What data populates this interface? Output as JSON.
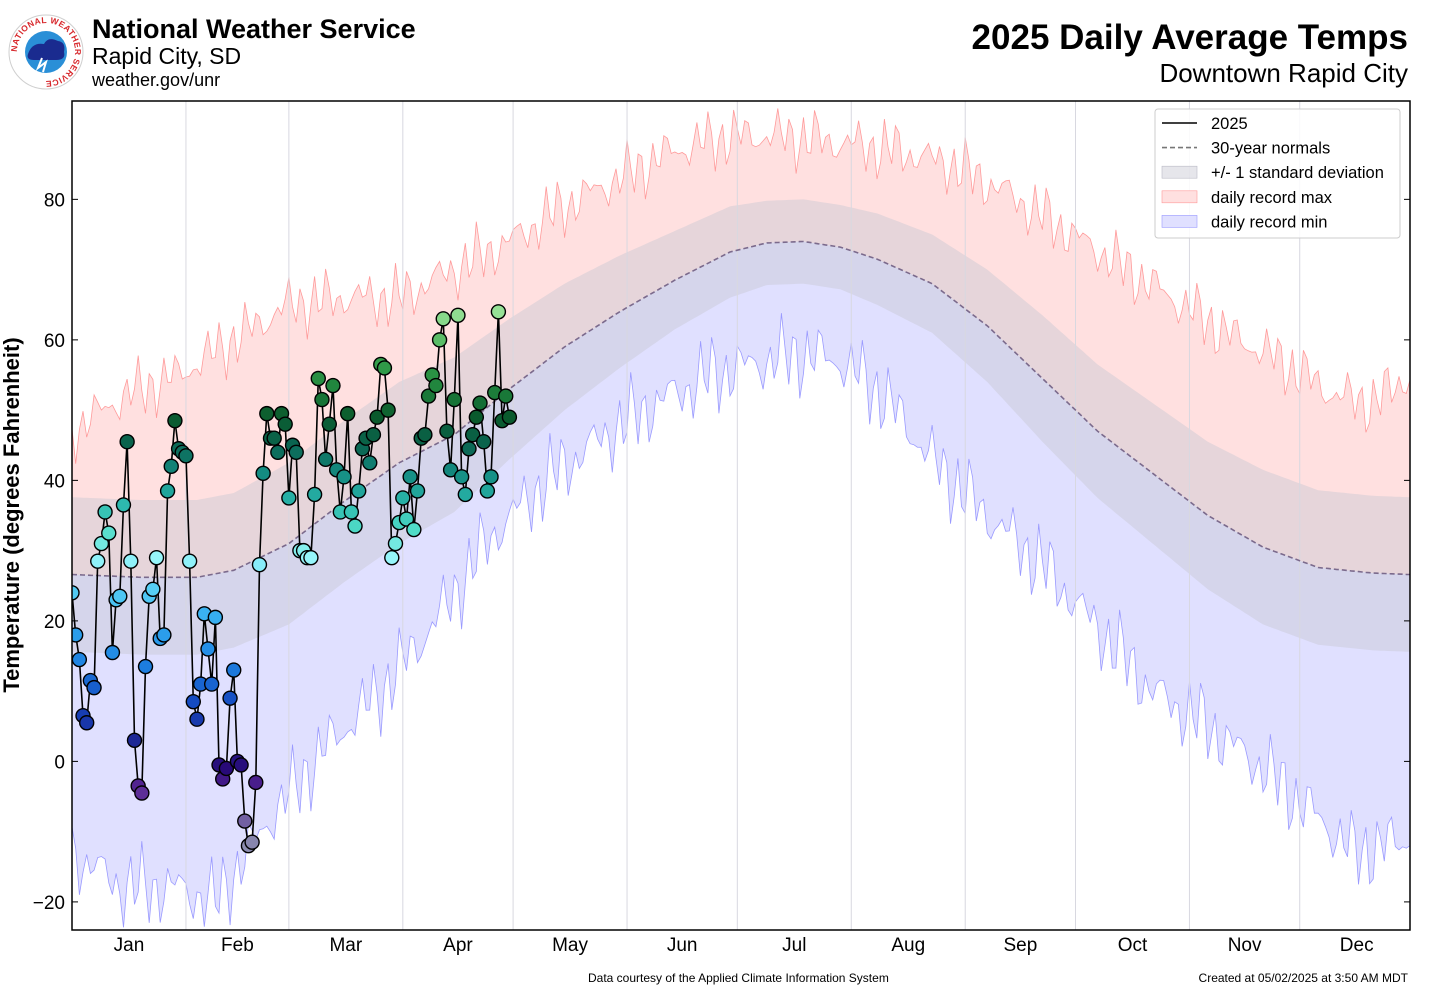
{
  "header": {
    "org_name": "National Weather Service",
    "office": "Rapid City, SD",
    "site": "weather.gov/unr",
    "logo_text": "NATIONAL WEATHER SERVICE"
  },
  "footer": {
    "credit": "Data courtesy of the Applied Climate Information System",
    "created": "Created at 05/02/2025 at 3:50 AM MDT"
  },
  "chart_data": {
    "type": "line",
    "title": "2025 Daily Average Temps",
    "subtitle": "Downtown Rapid City",
    "xlabel": "",
    "ylabel": "Temperature (degrees Fahrenheit)",
    "ylim": [
      -24,
      94
    ],
    "y_ticks": [
      -20,
      0,
      20,
      40,
      60,
      80
    ],
    "xlim_day_of_year": [
      1,
      365
    ],
    "month_labels": [
      "Jan",
      "Feb",
      "Mar",
      "Apr",
      "May",
      "Jun",
      "Jul",
      "Aug",
      "Sep",
      "Oct",
      "Nov",
      "Dec"
    ],
    "grid": "vertical month lines",
    "legend_position": "top-right",
    "legend": [
      "2025",
      "30-year normals",
      "+/- 1 standard deviation",
      "daily record max",
      "daily record min"
    ],
    "colors": {
      "observed_line": "#000000",
      "normal_line": "#7b6a8c",
      "std_band": "#c8c8d2",
      "record_max_fill": "#ffe0e0",
      "record_max_line": "#ff9a9a",
      "record_min_fill": "#e0e0ff",
      "record_min_line": "#9a9aff"
    },
    "observed_2025": [
      24,
      18,
      14.5,
      6.5,
      5.5,
      11.5,
      10.5,
      28.5,
      31,
      35.5,
      32.5,
      15.5,
      23,
      23.5,
      36.5,
      45.5,
      28.5,
      3,
      -3.5,
      -4.5,
      13.5,
      23.5,
      24.5,
      29,
      17.5,
      18,
      38.5,
      42,
      48.5,
      44.5,
      44,
      43.5,
      28.5,
      8.5,
      6,
      11,
      21,
      16,
      11,
      20.5,
      -0.5,
      -2.5,
      -1,
      9,
      13,
      0,
      -0.5,
      -8.5,
      -12,
      -11.5,
      -3,
      28,
      41,
      49.5,
      46,
      46,
      44,
      49.5,
      48,
      37.5,
      45,
      44,
      30,
      30,
      29,
      29,
      38,
      54.5,
      51.5,
      43,
      48,
      53.5,
      41.5,
      35.5,
      40.5,
      49.5,
      35.5,
      33.5,
      38.5,
      44.5,
      46,
      42.5,
      46.5,
      49,
      56.5,
      56,
      50,
      29,
      31,
      34,
      37.5,
      34.5,
      40.5,
      33,
      38.5,
      46,
      46.5,
      52,
      55,
      53.5,
      60,
      63,
      47,
      41.5,
      51.5,
      63.5,
      40.5,
      38,
      44.5,
      46.5,
      49,
      51,
      45.5,
      38.5,
      40.5,
      52.5,
      64,
      48.5,
      52,
      49
    ],
    "normals_approx": [
      [
        1,
        26.6
      ],
      [
        20,
        26.2
      ],
      [
        35,
        26.2
      ],
      [
        45,
        27.2
      ],
      [
        60,
        31
      ],
      [
        75,
        37
      ],
      [
        90,
        42.5
      ],
      [
        105,
        46.5
      ],
      [
        120,
        53
      ],
      [
        135,
        59
      ],
      [
        150,
        64
      ],
      [
        165,
        68.5
      ],
      [
        180,
        72.5
      ],
      [
        190,
        73.8
      ],
      [
        200,
        74
      ],
      [
        210,
        73.2
      ],
      [
        220,
        71.5
      ],
      [
        235,
        68
      ],
      [
        250,
        62
      ],
      [
        265,
        54.5
      ],
      [
        280,
        47
      ],
      [
        295,
        41
      ],
      [
        310,
        35
      ],
      [
        325,
        30.5
      ],
      [
        340,
        27.6
      ],
      [
        355,
        26.8
      ],
      [
        365,
        26.6
      ]
    ],
    "std_dev_approx": [
      11,
      11,
      11,
      11,
      11.5,
      11.5,
      11.5,
      11,
      10,
      9,
      8,
      7,
      6.5,
      6,
      6,
      6,
      6.5,
      7,
      8,
      9,
      9.5,
      10,
      10.5,
      11,
      11,
      11,
      11
    ],
    "record_max_approx": [
      [
        1,
        47
      ],
      [
        15,
        52
      ],
      [
        30,
        55
      ],
      [
        45,
        60
      ],
      [
        60,
        65
      ],
      [
        75,
        66
      ],
      [
        90,
        66
      ],
      [
        105,
        70
      ],
      [
        120,
        74
      ],
      [
        135,
        79
      ],
      [
        150,
        83
      ],
      [
        165,
        87
      ],
      [
        180,
        89
      ],
      [
        195,
        89
      ],
      [
        210,
        88
      ],
      [
        225,
        87
      ],
      [
        240,
        85
      ],
      [
        255,
        81
      ],
      [
        270,
        76
      ],
      [
        285,
        71
      ],
      [
        300,
        66
      ],
      [
        315,
        61
      ],
      [
        330,
        57
      ],
      [
        345,
        52
      ],
      [
        355,
        51
      ],
      [
        365,
        55
      ]
    ],
    "record_min_approx": [
      [
        1,
        -13
      ],
      [
        15,
        -18
      ],
      [
        30,
        -18
      ],
      [
        40,
        -20
      ],
      [
        55,
        -8
      ],
      [
        70,
        2
      ],
      [
        85,
        10
      ],
      [
        100,
        20
      ],
      [
        115,
        32
      ],
      [
        130,
        40
      ],
      [
        145,
        46
      ],
      [
        160,
        51
      ],
      [
        175,
        55
      ],
      [
        190,
        57
      ],
      [
        200,
        58
      ],
      [
        210,
        57
      ],
      [
        222,
        52
      ],
      [
        235,
        43
      ],
      [
        250,
        35
      ],
      [
        265,
        28
      ],
      [
        280,
        19
      ],
      [
        295,
        10
      ],
      [
        310,
        5
      ],
      [
        325,
        -1
      ],
      [
        340,
        -8
      ],
      [
        350,
        -13
      ],
      [
        365,
        -11
      ]
    ]
  }
}
